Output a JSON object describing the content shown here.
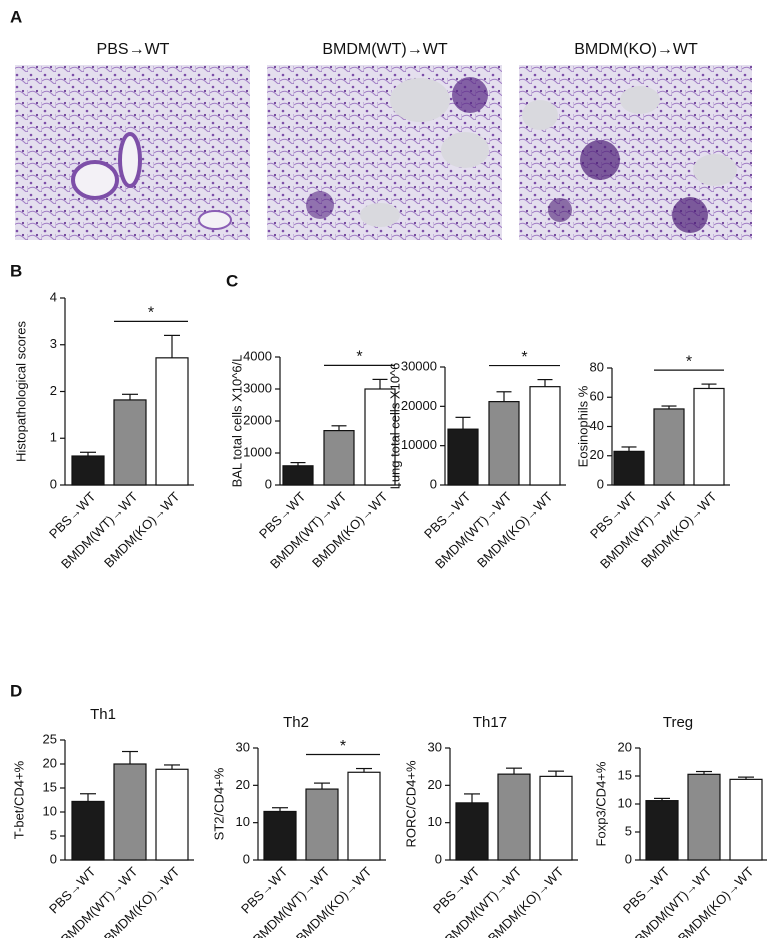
{
  "panel_labels": [
    "A",
    "B",
    "C",
    "D"
  ],
  "images": [
    {
      "title": "PBS→WT"
    },
    {
      "title": "BMDM(WT)→WT"
    },
    {
      "title": "BMDM(KO)→WT"
    }
  ],
  "chart_data": [
    {
      "type": "bar",
      "ylabel": "Histopathological scores",
      "categories": [
        "PBS→WT",
        "BMDM(WT)→WT",
        "BMDM(KO)→WT"
      ],
      "values": [
        0.62,
        1.82,
        2.72
      ],
      "errors": [
        0.08,
        0.12,
        0.48
      ],
      "colors": [
        "#1a1a1a",
        "#8c8c8c",
        "#ffffff"
      ],
      "ylim": [
        0,
        4
      ],
      "yticks": [
        0,
        1,
        2,
        3,
        4
      ],
      "annotation": "*"
    },
    {
      "type": "bar",
      "ylabel": "BAL total cells X10^6/L",
      "categories": [
        "PBS→WT",
        "BMDM(WT)→WT",
        "BMDM(KO)→WT"
      ],
      "values": [
        600,
        1700,
        3000
      ],
      "errors": [
        100,
        150,
        300
      ],
      "colors": [
        "#1a1a1a",
        "#8c8c8c",
        "#ffffff"
      ],
      "ylim": [
        0,
        4000
      ],
      "yticks": [
        0,
        1000,
        2000,
        3000,
        4000
      ],
      "annotation": "*"
    },
    {
      "type": "bar",
      "ylabel": "Lung total cells X10^6",
      "categories": [
        "PBS→WT",
        "BMDM(WT)→WT",
        "BMDM(KO)→WT"
      ],
      "values": [
        14200,
        21200,
        25000
      ],
      "errors": [
        3000,
        2500,
        1800
      ],
      "colors": [
        "#1a1a1a",
        "#8c8c8c",
        "#ffffff"
      ],
      "ylim": [
        0,
        30000
      ],
      "yticks": [
        0,
        10000,
        20000,
        30000
      ],
      "annotation": "*"
    },
    {
      "type": "bar",
      "ylabel": "Eosinophils %",
      "categories": [
        "PBS→WT",
        "BMDM(WT)→WT",
        "BMDM(KO)→WT"
      ],
      "values": [
        23,
        52,
        66
      ],
      "errors": [
        3,
        2,
        3
      ],
      "colors": [
        "#1a1a1a",
        "#8c8c8c",
        "#ffffff"
      ],
      "ylim": [
        0,
        80
      ],
      "yticks": [
        0,
        20,
        40,
        60,
        80
      ],
      "annotation": "*"
    },
    {
      "type": "bar",
      "title": "Th1",
      "ylabel": "T-bet/CD4+%",
      "categories": [
        "PBS→WT",
        "BMDM(WT)→WT",
        "BMDM(KO)→WT"
      ],
      "values": [
        12.2,
        20,
        18.9
      ],
      "errors": [
        1.6,
        2.6,
        0.9
      ],
      "colors": [
        "#1a1a1a",
        "#8c8c8c",
        "#ffffff"
      ],
      "ylim": [
        0,
        25
      ],
      "yticks": [
        0,
        5,
        10,
        15,
        20,
        25
      ]
    },
    {
      "type": "bar",
      "title": "Th2",
      "ylabel": "ST2/CD4+%",
      "categories": [
        "PBS→WT",
        "BMDM(WT)→WT",
        "BMDM(KO)→WT"
      ],
      "values": [
        13,
        19,
        23.5
      ],
      "errors": [
        1,
        1.6,
        1
      ],
      "colors": [
        "#1a1a1a",
        "#8c8c8c",
        "#ffffff"
      ],
      "ylim": [
        0,
        30
      ],
      "yticks": [
        0,
        10,
        20,
        30
      ],
      "annotation": "*"
    },
    {
      "type": "bar",
      "title": "Th17",
      "ylabel": "RORC/CD4+%",
      "categories": [
        "PBS→WT",
        "BMDM(WT)→WT",
        "BMDM(KO)→WT"
      ],
      "values": [
        15.3,
        23,
        22.4
      ],
      "errors": [
        2.4,
        1.6,
        1.4
      ],
      "colors": [
        "#1a1a1a",
        "#8c8c8c",
        "#ffffff"
      ],
      "ylim": [
        0,
        30
      ],
      "yticks": [
        0,
        10,
        20,
        30
      ]
    },
    {
      "type": "bar",
      "title": "Treg",
      "ylabel": "Foxp3/CD4+%",
      "categories": [
        "PBS→WT",
        "BMDM(WT)→WT",
        "BMDM(KO)→WT"
      ],
      "values": [
        10.6,
        15.3,
        14.4
      ],
      "errors": [
        0.4,
        0.5,
        0.4
      ],
      "colors": [
        "#1a1a1a",
        "#8c8c8c",
        "#ffffff"
      ],
      "ylim": [
        0,
        20
      ],
      "yticks": [
        0,
        5,
        10,
        15,
        20
      ]
    }
  ]
}
